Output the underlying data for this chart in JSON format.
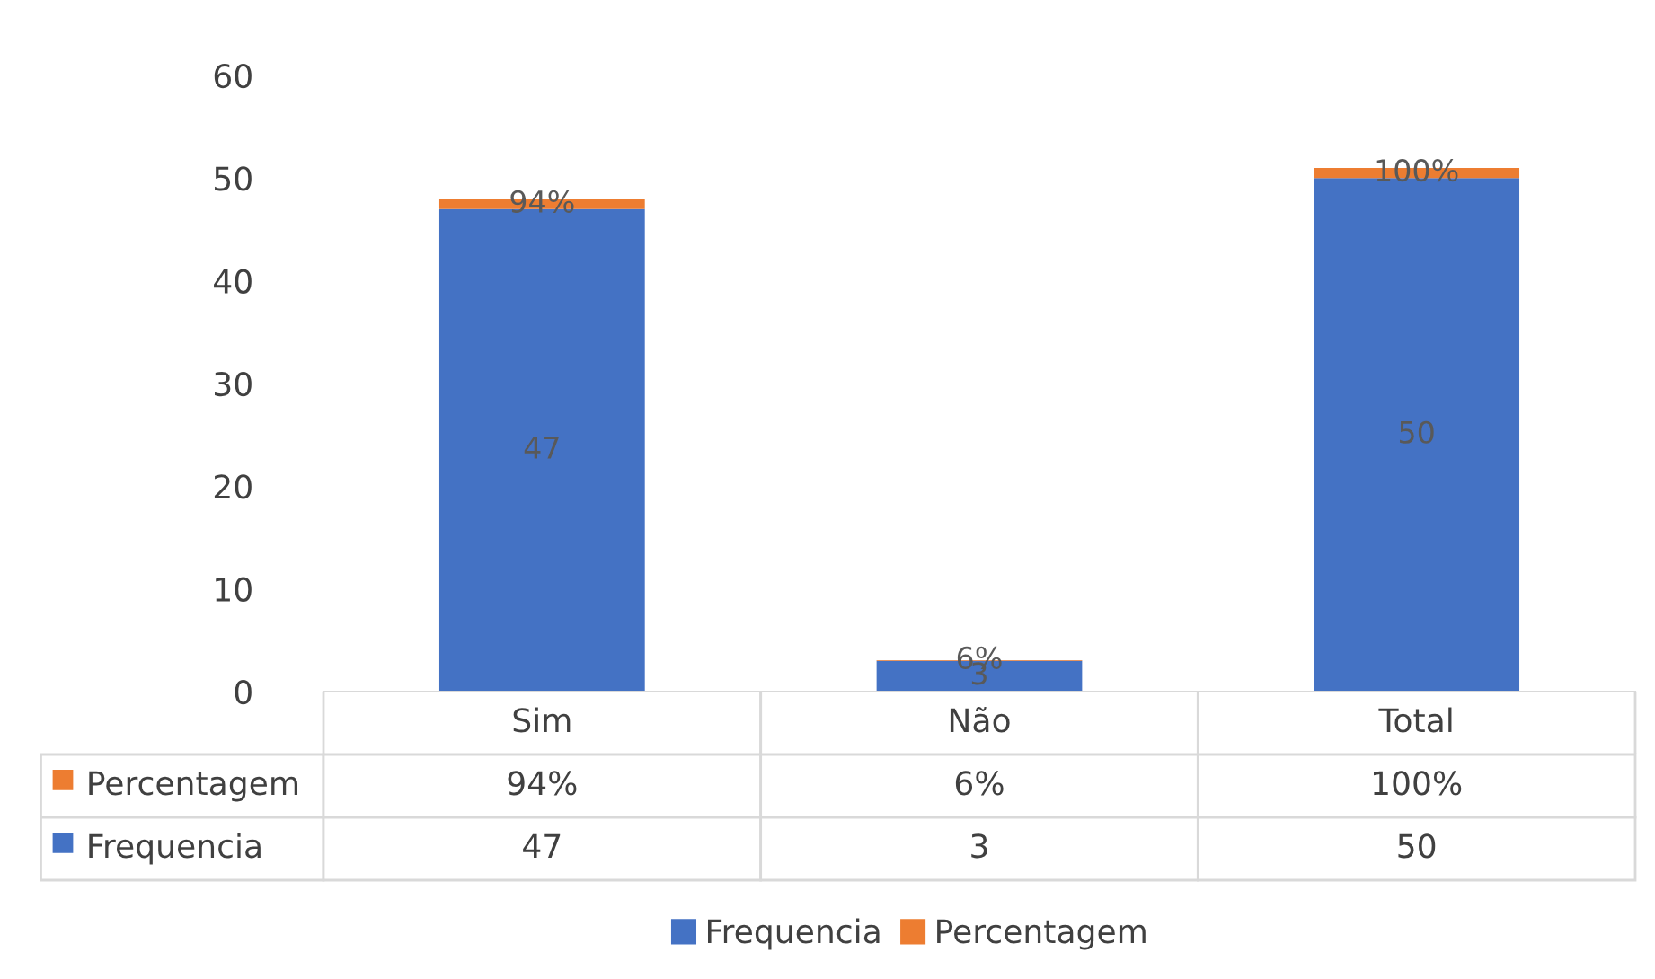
{
  "chart_data": {
    "type": "bar",
    "stacked": true,
    "categories": [
      "Sim",
      "Não",
      "Total"
    ],
    "series": [
      {
        "name": "Frequencia",
        "color": "#4472c4",
        "values": [
          47,
          3,
          50
        ],
        "value_labels": [
          "47",
          "3",
          "50"
        ]
      },
      {
        "name": "Percentagem",
        "color": "#ed7d31",
        "values": [
          0.94,
          0.06,
          1
        ],
        "value_labels": [
          "94%",
          "6%",
          "100%"
        ]
      }
    ],
    "ylim": [
      0,
      60
    ],
    "yticks": [
      0,
      10,
      20,
      30,
      40,
      50,
      60
    ],
    "grid": false,
    "legend": "bottom"
  }
}
